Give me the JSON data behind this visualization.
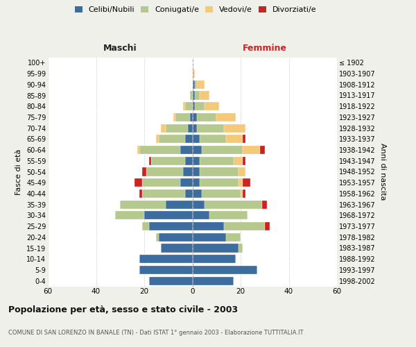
{
  "age_groups": [
    "0-4",
    "5-9",
    "10-14",
    "15-19",
    "20-24",
    "25-29",
    "30-34",
    "35-39",
    "40-44",
    "45-49",
    "50-54",
    "55-59",
    "60-64",
    "65-69",
    "70-74",
    "75-79",
    "80-84",
    "85-89",
    "90-94",
    "95-99",
    "100+"
  ],
  "birth_years": [
    "1998-2002",
    "1993-1997",
    "1988-1992",
    "1983-1987",
    "1978-1982",
    "1973-1977",
    "1968-1972",
    "1963-1967",
    "1958-1962",
    "1953-1957",
    "1948-1952",
    "1943-1947",
    "1938-1942",
    "1933-1937",
    "1928-1932",
    "1923-1927",
    "1918-1922",
    "1913-1917",
    "1908-1912",
    "1903-1907",
    "≤ 1902"
  ],
  "colors": {
    "celibi": "#3d6d9e",
    "coniugati": "#b5c98e",
    "vedovi": "#f5c97a",
    "divorziati": "#cc2222"
  },
  "male": {
    "celibi": [
      18,
      22,
      22,
      13,
      14,
      18,
      20,
      11,
      3,
      5,
      4,
      3,
      5,
      3,
      2,
      1,
      0,
      0,
      0,
      0,
      0
    ],
    "coniugati": [
      0,
      0,
      0,
      0,
      1,
      3,
      12,
      19,
      18,
      16,
      15,
      14,
      17,
      11,
      9,
      6,
      3,
      1,
      0,
      0,
      0
    ],
    "vedovi": [
      0,
      0,
      0,
      0,
      0,
      0,
      0,
      0,
      0,
      0,
      0,
      0,
      1,
      1,
      2,
      1,
      1,
      0,
      0,
      0,
      0
    ],
    "divorziati": [
      0,
      0,
      0,
      0,
      0,
      0,
      0,
      0,
      1,
      3,
      2,
      1,
      0,
      0,
      0,
      0,
      0,
      0,
      0,
      0,
      0
    ]
  },
  "female": {
    "nubili": [
      17,
      27,
      18,
      19,
      14,
      13,
      7,
      5,
      4,
      3,
      3,
      3,
      4,
      3,
      2,
      2,
      1,
      1,
      1,
      0,
      0
    ],
    "coniugate": [
      0,
      0,
      0,
      2,
      6,
      17,
      16,
      24,
      16,
      16,
      16,
      14,
      17,
      11,
      11,
      8,
      4,
      2,
      1,
      0,
      0
    ],
    "vedove": [
      0,
      0,
      0,
      0,
      0,
      0,
      0,
      0,
      1,
      2,
      3,
      4,
      7,
      7,
      9,
      8,
      6,
      4,
      3,
      1,
      0
    ],
    "divorziate": [
      0,
      0,
      0,
      0,
      0,
      2,
      0,
      2,
      1,
      3,
      0,
      1,
      2,
      1,
      0,
      0,
      0,
      0,
      0,
      0,
      0
    ]
  },
  "xlim": 60,
  "title": "Popolazione per età, sesso e stato civile - 2003",
  "subtitle": "COMUNE DI SAN LORENZO IN BANALE (TN) - Dati ISTAT 1° gennaio 2003 - Elaborazione TUTTITALIA.IT",
  "ylabel_left": "Fasce di età",
  "ylabel_right": "Anni di nascita",
  "label_maschi": "Maschi",
  "label_femmine": "Femmine",
  "legend_labels": [
    "Celibi/Nubili",
    "Coniugati/e",
    "Vedovi/e",
    "Divorziati/e"
  ],
  "bg_color": "#f0f0eb",
  "plot_bg": "#ffffff"
}
